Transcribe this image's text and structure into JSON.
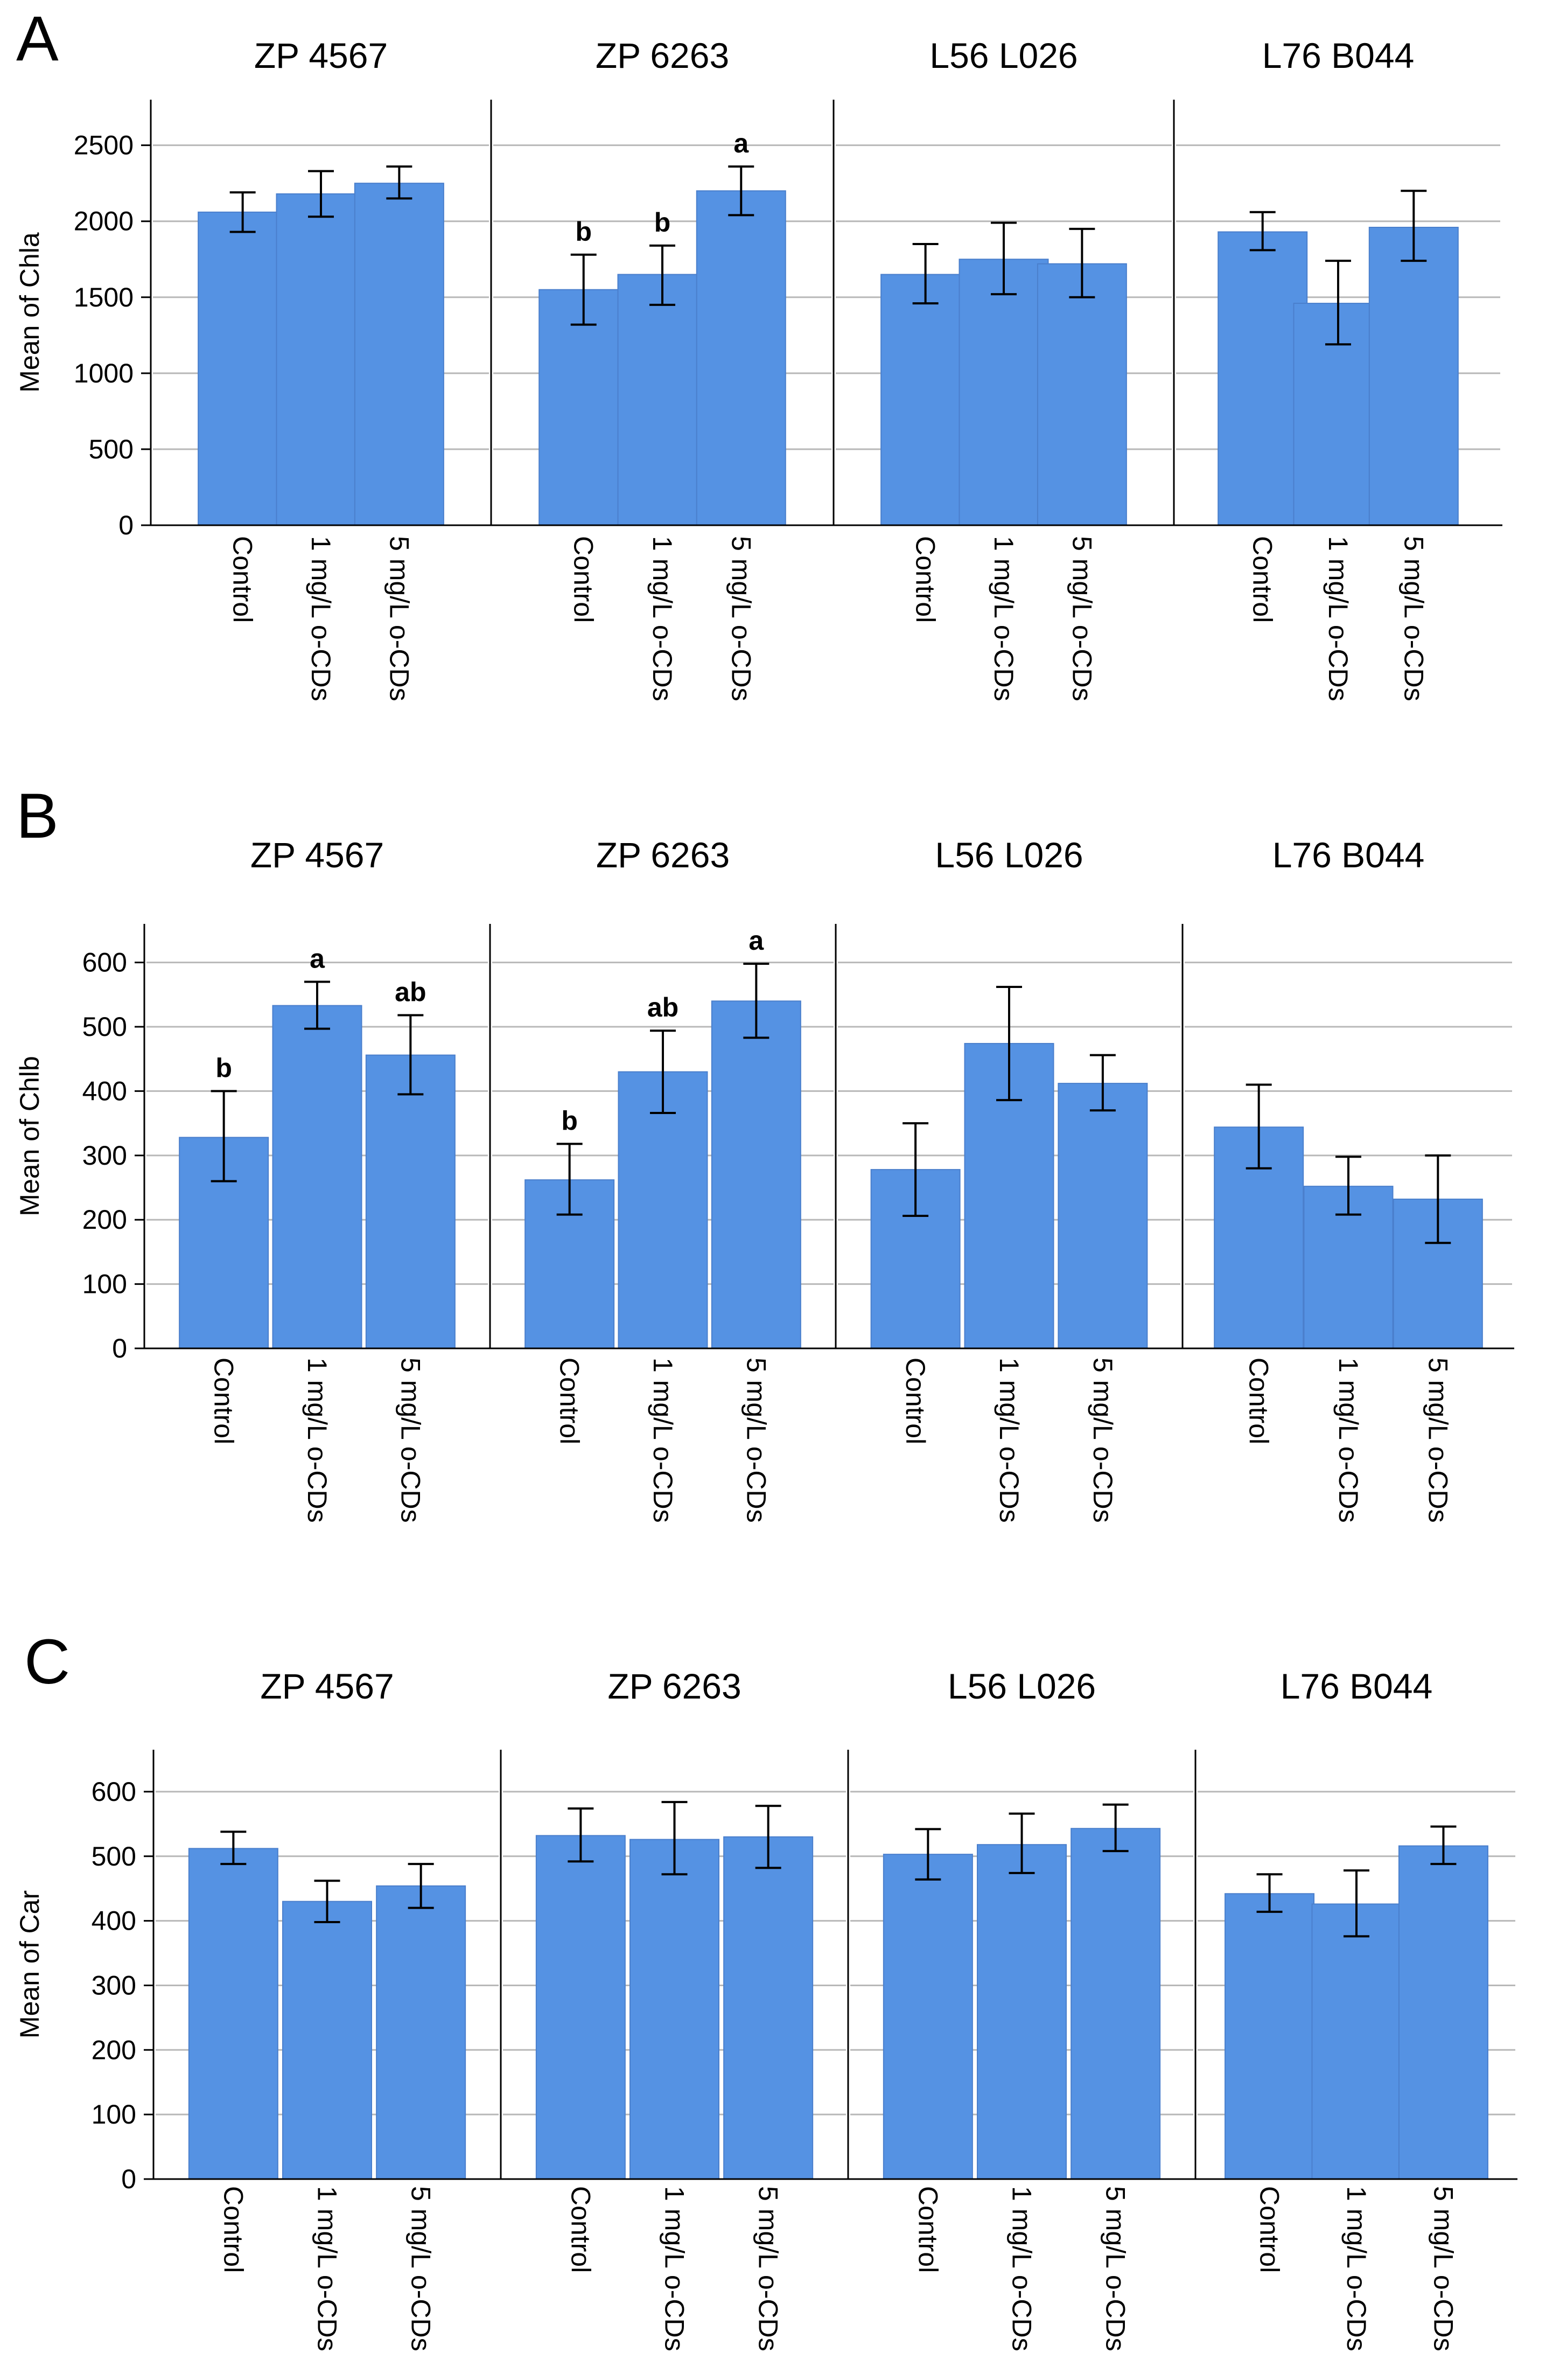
{
  "colors": {
    "bar": "#5592e3",
    "bar_edge": "#4a7fcc",
    "grid": "#b8b8b8",
    "axis": "#000000"
  },
  "chart_data": [
    {
      "panel": "A",
      "type": "bar",
      "ylabel": "Mean of Chla",
      "ylim": [
        0,
        2800
      ],
      "yticks": [
        0,
        500,
        1000,
        1500,
        2000,
        2500
      ],
      "grid": true,
      "categories": [
        "Control",
        "1 mg/L o-CDs",
        "5 mg/L o-CDs"
      ],
      "facets": [
        {
          "title": "ZP 4567",
          "values": [
            2060,
            2180,
            2250
          ],
          "errors": [
            [
              1930,
              2190
            ],
            [
              2030,
              2330
            ],
            [
              2150,
              2360
            ]
          ],
          "labels": [
            "",
            "",
            ""
          ]
        },
        {
          "title": "ZP 6263",
          "values": [
            1550,
            1650,
            2200
          ],
          "errors": [
            [
              1320,
              1780
            ],
            [
              1450,
              1840
            ],
            [
              2040,
              2360
            ]
          ],
          "labels": [
            "b",
            "b",
            "a"
          ]
        },
        {
          "title": "L56 L026",
          "values": [
            1650,
            1750,
            1720
          ],
          "errors": [
            [
              1460,
              1850
            ],
            [
              1520,
              1990
            ],
            [
              1500,
              1950
            ]
          ],
          "labels": [
            "",
            "",
            ""
          ]
        },
        {
          "title": "L76 B044",
          "values": [
            1930,
            1460,
            1960
          ],
          "errors": [
            [
              1810,
              2060
            ],
            [
              1190,
              1740
            ],
            [
              1740,
              2200
            ]
          ],
          "labels": [
            "",
            "",
            ""
          ]
        }
      ]
    },
    {
      "panel": "B",
      "type": "bar",
      "ylabel": "Mean of Chlb",
      "ylim": [
        0,
        660
      ],
      "yticks": [
        0,
        100,
        200,
        300,
        400,
        500,
        600
      ],
      "grid": true,
      "categories": [
        "Control",
        "1 mg/L o-CDs",
        "5 mg/L o-CDs"
      ],
      "facets": [
        {
          "title": "ZP 4567",
          "values": [
            328,
            533,
            456
          ],
          "errors": [
            [
              260,
              400
            ],
            [
              497,
              570
            ],
            [
              395,
              518
            ]
          ],
          "labels": [
            "b",
            "a",
            "ab"
          ]
        },
        {
          "title": "ZP 6263",
          "values": [
            262,
            430,
            540
          ],
          "errors": [
            [
              208,
              318
            ],
            [
              366,
              494
            ],
            [
              483,
              598
            ]
          ],
          "labels": [
            "b",
            "ab",
            "a"
          ]
        },
        {
          "title": "L56 L026",
          "values": [
            278,
            474,
            412
          ],
          "errors": [
            [
              206,
              350
            ],
            [
              386,
              562
            ],
            [
              370,
              456
            ]
          ],
          "labels": [
            "",
            "",
            ""
          ]
        },
        {
          "title": "L76 B044",
          "values": [
            344,
            252,
            232
          ],
          "errors": [
            [
              280,
              410
            ],
            [
              208,
              298
            ],
            [
              164,
              300
            ]
          ],
          "labels": [
            "",
            "",
            ""
          ]
        }
      ]
    },
    {
      "panel": "C",
      "type": "bar",
      "ylabel": "Mean of Car",
      "ylim": [
        0,
        665
      ],
      "yticks": [
        0,
        100,
        200,
        300,
        400,
        500,
        600
      ],
      "grid": true,
      "categories": [
        "Control",
        "1 mg/L o-CDs",
        "5 mg/L o-CDs"
      ],
      "facets": [
        {
          "title": "ZP 4567",
          "values": [
            512,
            430,
            454
          ],
          "errors": [
            [
              488,
              538
            ],
            [
              398,
              462
            ],
            [
              420,
              488
            ]
          ],
          "labels": [
            "",
            "",
            ""
          ]
        },
        {
          "title": "ZP 6263",
          "values": [
            532,
            526,
            530
          ],
          "errors": [
            [
              492,
              574
            ],
            [
              472,
              584
            ],
            [
              482,
              578
            ]
          ],
          "labels": [
            "",
            "",
            ""
          ]
        },
        {
          "title": "L56 L026",
          "values": [
            503,
            518,
            543
          ],
          "errors": [
            [
              464,
              542
            ],
            [
              474,
              566
            ],
            [
              508,
              580
            ]
          ],
          "labels": [
            "",
            "",
            ""
          ]
        },
        {
          "title": "L76 B044",
          "values": [
            442,
            426,
            516
          ],
          "errors": [
            [
              414,
              472
            ],
            [
              376,
              478
            ],
            [
              488,
              546
            ]
          ],
          "labels": [
            "",
            "",
            ""
          ]
        }
      ]
    }
  ]
}
